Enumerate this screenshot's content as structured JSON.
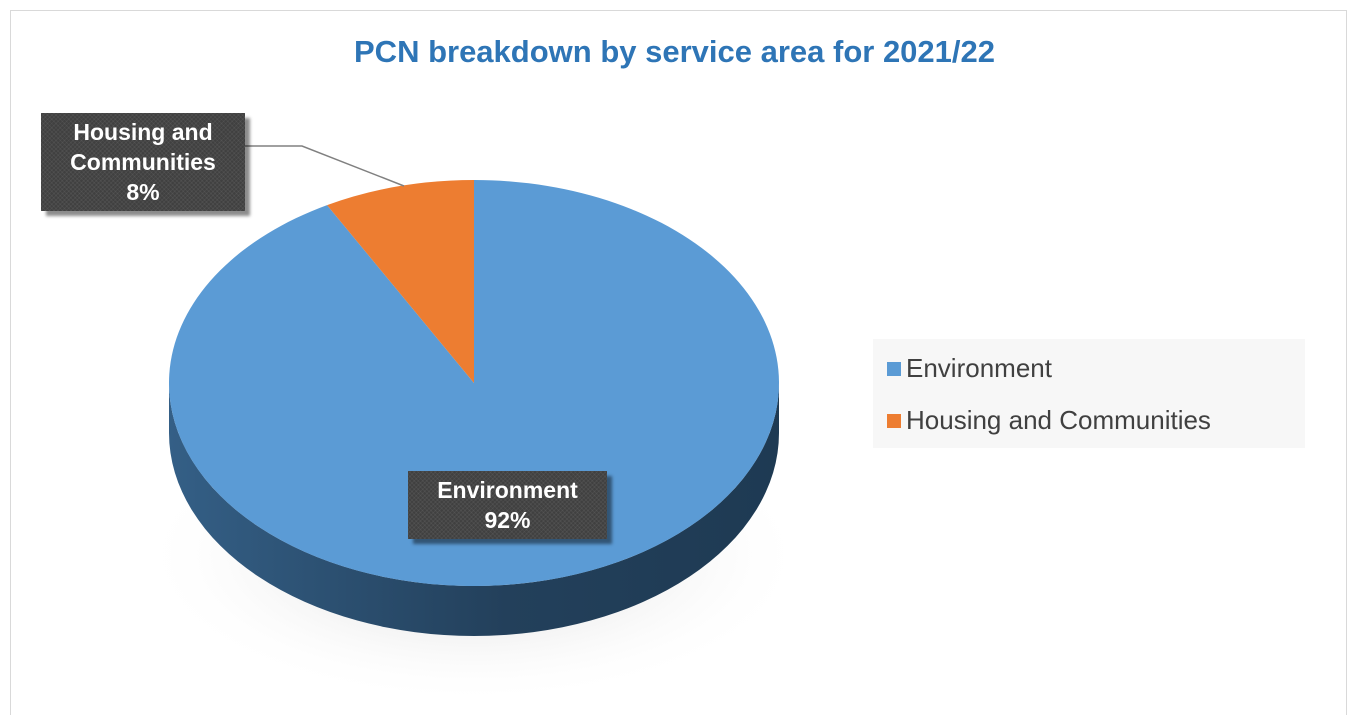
{
  "chart_data": {
    "type": "pie",
    "title": "PCN breakdown by service area for 2021/22",
    "categories": [
      "Environment",
      "Housing and Communities"
    ],
    "values": [
      92,
      8
    ],
    "unit": "%",
    "colors": [
      "#5b9bd5",
      "#ed7d31"
    ],
    "data_labels": [
      {
        "name": "Environment",
        "value": "92%"
      },
      {
        "name": "Housing and Communities",
        "value": "8%"
      }
    ],
    "legend": {
      "position": "right",
      "entries": [
        "Environment",
        "Housing and Communities"
      ]
    },
    "style": "3d"
  }
}
